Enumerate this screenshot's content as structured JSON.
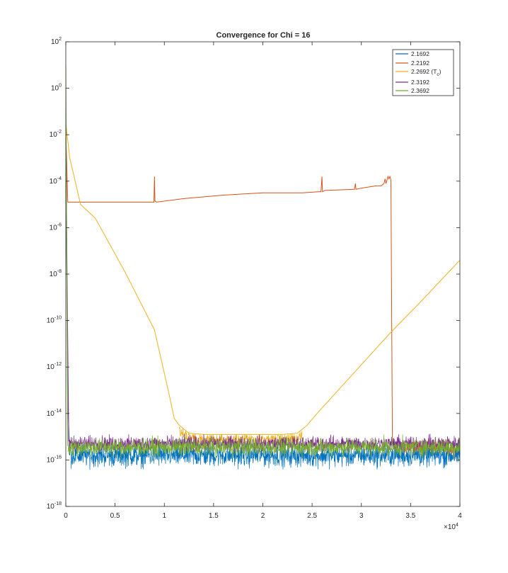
{
  "chart_data": {
    "type": "line",
    "title": "Convergence for Chi = 16",
    "xlabel": "",
    "ylabel": "",
    "xlim": [
      0,
      40000
    ],
    "ylim_exponents": [
      -18,
      2
    ],
    "yscale": "log",
    "grid": false,
    "legend_position": "top-right",
    "x_ticks": [
      "0",
      "0.5",
      "1",
      "1.5",
      "2",
      "2.5",
      "3",
      "3.5",
      "4"
    ],
    "x_multiplier": "×10",
    "x_multiplier_exponent": "4",
    "y_tick_base": "10",
    "y_tick_exponents": [
      "2",
      "0",
      "-2",
      "-4",
      "-6",
      "-8",
      "-10",
      "-12",
      "-14",
      "-16",
      "-18"
    ],
    "series": [
      {
        "name": "2.1692",
        "color": "#0072BD",
        "noise_floor": {
          "x_start": 500,
          "log10_center": -15.8,
          "log10_spread": 0.45
        },
        "points": [
          [
            0,
            -2.3
          ],
          [
            100,
            -8.0
          ],
          [
            250,
            -14.0
          ],
          [
            400,
            -15.8
          ]
        ]
      },
      {
        "name": "2.2192",
        "color": "#D95319",
        "points": [
          [
            0,
            -2.0
          ],
          [
            80,
            -3.0
          ],
          [
            200,
            -4.9
          ],
          [
            8900,
            -4.9
          ],
          [
            8950,
            -4.9
          ],
          [
            9000,
            -3.8
          ],
          [
            9050,
            -4.85
          ],
          [
            9200,
            -4.9
          ],
          [
            12000,
            -4.75
          ],
          [
            16000,
            -4.6
          ],
          [
            20000,
            -4.5
          ],
          [
            24000,
            -4.5
          ],
          [
            25900,
            -4.45
          ],
          [
            26000,
            -3.8
          ],
          [
            26050,
            -4.45
          ],
          [
            26300,
            -4.4
          ],
          [
            29300,
            -4.35
          ],
          [
            29400,
            -4.1
          ],
          [
            29450,
            -4.35
          ],
          [
            30000,
            -4.3
          ],
          [
            31500,
            -4.2
          ],
          [
            32000,
            -4.2
          ],
          [
            32300,
            -4.1
          ],
          [
            32400,
            -3.9
          ],
          [
            32500,
            -4.1
          ],
          [
            32700,
            -3.8
          ],
          [
            32800,
            -3.9
          ],
          [
            32900,
            -3.8
          ],
          [
            33000,
            -3.95
          ],
          [
            33150,
            -15.2
          ],
          [
            33300,
            -15.3
          ]
        ],
        "noise_floor": {
          "x_start": 33300,
          "log10_center": -15.5,
          "log10_spread": 0.3
        }
      },
      {
        "name": "2.2692 (T",
        "name_subscript": "c",
        "name_suffix": ")",
        "color": "#EDB120",
        "points": [
          [
            0,
            -1.5
          ],
          [
            400,
            -3.0
          ],
          [
            1500,
            -5.0
          ],
          [
            3000,
            -5.6
          ],
          [
            6000,
            -7.9
          ],
          [
            9000,
            -10.4
          ],
          [
            10500,
            -13.2
          ],
          [
            11000,
            -14.2
          ],
          [
            11500,
            -14.5
          ],
          [
            12500,
            -14.85
          ],
          [
            14000,
            -14.9
          ],
          [
            16000,
            -14.9
          ],
          [
            18000,
            -14.9
          ],
          [
            20000,
            -14.9
          ],
          [
            22000,
            -14.9
          ],
          [
            23500,
            -14.85
          ],
          [
            24500,
            -14.5
          ],
          [
            25500,
            -14.0
          ],
          [
            27000,
            -13.3
          ],
          [
            30000,
            -11.9
          ],
          [
            33000,
            -10.5
          ],
          [
            36000,
            -9.2
          ],
          [
            40000,
            -7.4
          ]
        ],
        "noise_windows": [
          [
            11500,
            24000
          ]
        ]
      },
      {
        "name": "2.3192",
        "color": "#7E2F8E",
        "noise_floor": {
          "x_start": 300,
          "log10_center": -15.3,
          "log10_spread": 0.3
        },
        "points": [
          [
            0,
            -1.8
          ],
          [
            150,
            -9.0
          ],
          [
            300,
            -15.2
          ]
        ]
      },
      {
        "name": "2.3692",
        "color": "#77AC30",
        "noise_floor": {
          "x_start": 200,
          "log10_center": -15.45,
          "log10_spread": 0.35
        },
        "points": [
          [
            0,
            1.0
          ],
          [
            80,
            -6.0
          ],
          [
            200,
            -15.4
          ]
        ]
      }
    ]
  }
}
